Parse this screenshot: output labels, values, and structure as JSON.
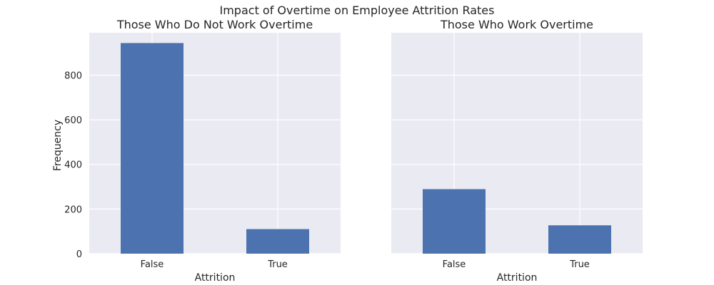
{
  "figure": {
    "suptitle": "Impact of Overtime on Employee Attrition Rates"
  },
  "chart_data": [
    {
      "type": "bar",
      "title": "Those Who Do Not Work Overtime",
      "categories": [
        "False",
        "True"
      ],
      "values": [
        944,
        110
      ],
      "xlabel": "Attrition",
      "ylabel": "Frequency",
      "ylim": [
        0,
        990
      ],
      "yticks": [
        0,
        200,
        400,
        600,
        800
      ],
      "ytick_labels": [
        "0",
        "200",
        "400",
        "600",
        "800"
      ],
      "grid": true,
      "bar_color": "#4c72b0"
    },
    {
      "type": "bar",
      "title": "Those Who Work Overtime",
      "categories": [
        "False",
        "True"
      ],
      "values": [
        289,
        127
      ],
      "xlabel": "Attrition",
      "ylabel": "",
      "ylim": [
        0,
        990
      ],
      "yticks": [
        0,
        200,
        400,
        600,
        800
      ],
      "ytick_labels": [],
      "grid": true,
      "bar_color": "#4c72b0"
    }
  ],
  "colors": {
    "panel_background": "#eaeaf2",
    "grid": "#ffffff",
    "text": "#262626"
  }
}
